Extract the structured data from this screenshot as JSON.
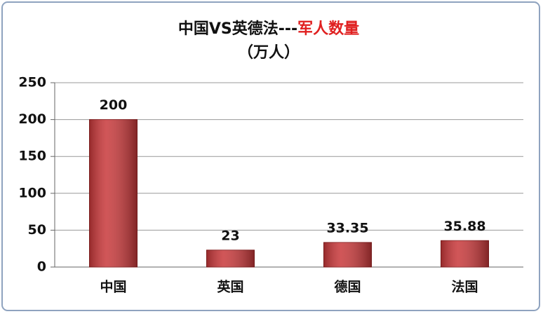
{
  "chart_data": {
    "type": "bar",
    "title": "中国VS英德法---",
    "title_highlight": "军人数量",
    "title_highlight_color": "#e02020",
    "subtitle": "（万人）",
    "categories": [
      "中国",
      "英国",
      "德国",
      "法国"
    ],
    "values": [
      200,
      23,
      33.35,
      35.88
    ],
    "color": "#c8383a",
    "ylim": [
      0,
      250
    ],
    "yticks": [
      0,
      50,
      100,
      150,
      200,
      250
    ],
    "grid": true
  }
}
